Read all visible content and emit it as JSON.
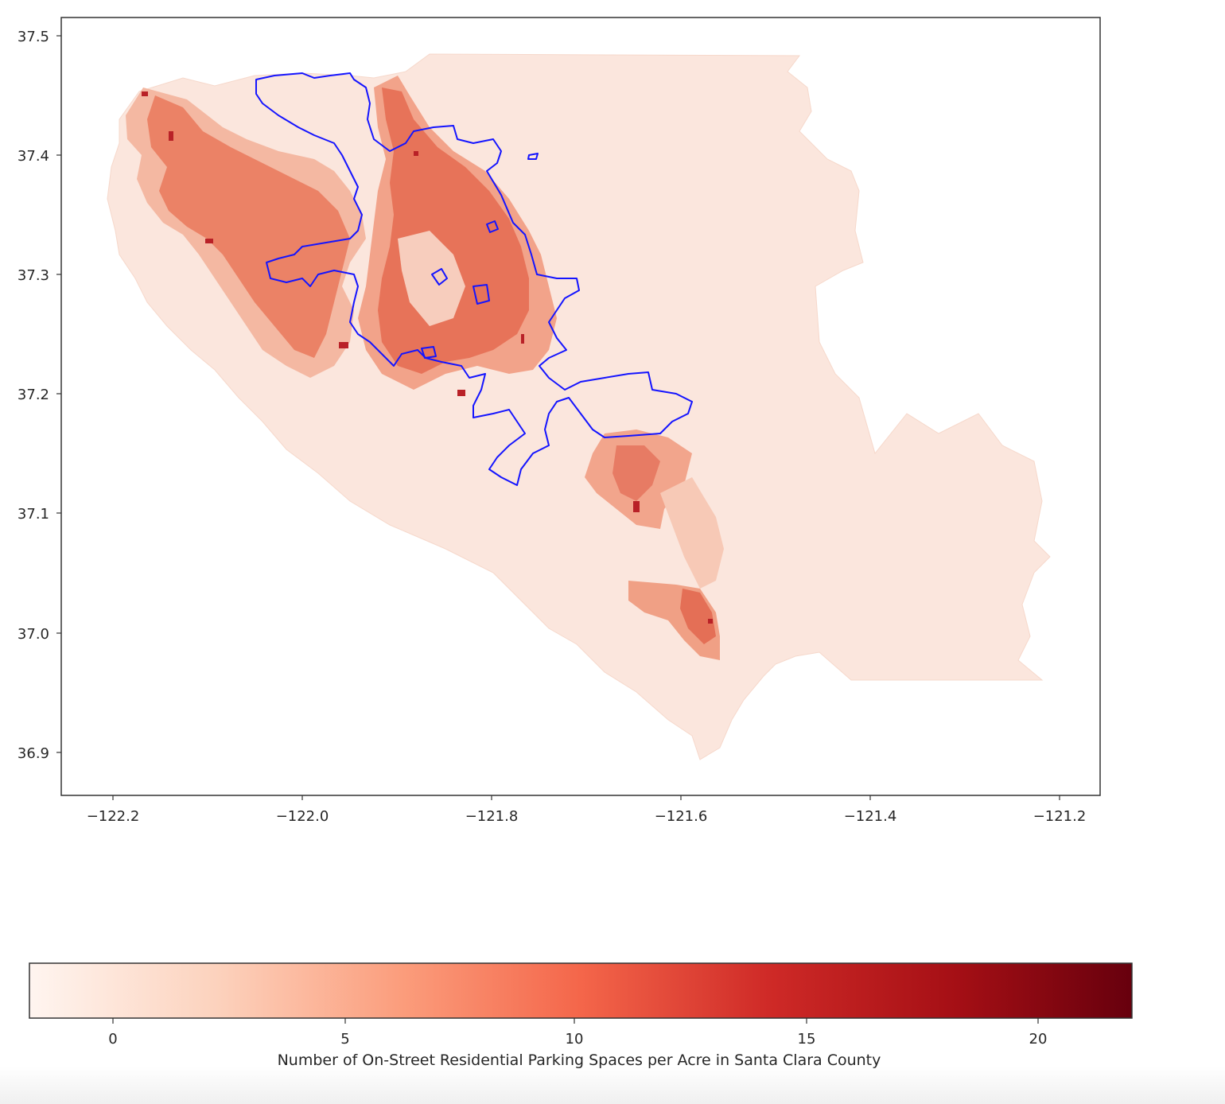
{
  "map": {
    "x_axis": {
      "ticks": [
        "−122.2",
        "−122.0",
        "−121.8",
        "−121.6",
        "−121.4",
        "−121.2"
      ]
    },
    "y_axis": {
      "ticks": [
        "37.5",
        "37.4",
        "37.3",
        "37.2",
        "37.1",
        "37.0",
        "36.9"
      ]
    },
    "layers": [
      {
        "name": "census tracts",
        "style": "choropleth",
        "colormap": "Reds"
      },
      {
        "name": "city boundary",
        "style": "outline",
        "color": "#1414ff"
      }
    ],
    "colors": {
      "county_base": "#fbe6dd",
      "low": "#f9d2c2",
      "mid": "#f3a88e",
      "high": "#e5694f",
      "max": "#b92127",
      "boundary": "#1414ff",
      "frame": "#333333"
    }
  },
  "colorbar": {
    "label": "Number of On-Street Residential Parking Spaces per Acre in Santa Clara County",
    "ticks": [
      "0",
      "5",
      "10",
      "15",
      "20"
    ],
    "colormap": "Reds",
    "stops": [
      "#fff5f0",
      "#fcd2bd",
      "#fb9c7b",
      "#f4664a",
      "#cf2a27",
      "#a50f15",
      "#67000d"
    ]
  }
}
